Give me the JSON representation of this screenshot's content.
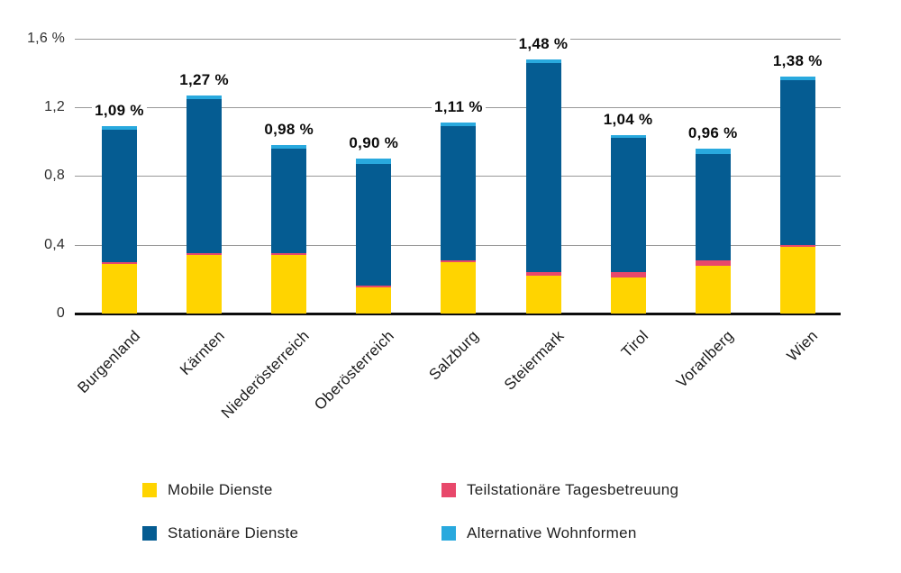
{
  "chart_data": {
    "type": "bar",
    "stacked": true,
    "title": "",
    "unit": "%",
    "categories": [
      "Burgenland",
      "Kärnten",
      "Niederösterreich",
      "Oberösterreich",
      "Salzburg",
      "Steiermark",
      "Tirol",
      "Vorarlberg",
      "Wien"
    ],
    "series": [
      {
        "name": "Mobile Dienste",
        "color": "#ffd400",
        "values": [
          0.29,
          0.34,
          0.34,
          0.15,
          0.3,
          0.22,
          0.21,
          0.28,
          0.39
        ]
      },
      {
        "name": "Teilstationäre Tagesbetreuung",
        "color": "#e8486b",
        "values": [
          0.01,
          0.01,
          0.01,
          0.01,
          0.01,
          0.02,
          0.03,
          0.03,
          0.01
        ]
      },
      {
        "name": "Stationäre Dienste",
        "color": "#055c92",
        "values": [
          0.77,
          0.9,
          0.61,
          0.71,
          0.78,
          1.22,
          0.78,
          0.62,
          0.96
        ]
      },
      {
        "name": "Alternative Wohnformen",
        "color": "#29a9de",
        "values": [
          0.02,
          0.02,
          0.02,
          0.03,
          0.02,
          0.02,
          0.02,
          0.03,
          0.02
        ]
      }
    ],
    "stack_order": "bottom-to-top",
    "totals": [
      1.09,
      1.27,
      0.98,
      0.9,
      1.11,
      1.48,
      1.04,
      0.96,
      1.38
    ],
    "total_labels": [
      "1,09 %",
      "1,27 %",
      "0,98 %",
      "0,90 %",
      "1,11 %",
      "1,48 %",
      "1,04 %",
      "0,96 %",
      "1,38 %"
    ],
    "y_ticks": [
      {
        "value": 0,
        "label": "0"
      },
      {
        "value": 0.4,
        "label": "0,4"
      },
      {
        "value": 0.8,
        "label": "0,8"
      },
      {
        "value": 1.2,
        "label": "1,2"
      },
      {
        "value": 1.6,
        "label": "1,6 %"
      }
    ],
    "ylim": [
      0,
      1.6
    ],
    "grid": true,
    "legend_position": "bottom",
    "legend_items": [
      {
        "label": "Mobile Dienste",
        "color": "#ffd400"
      },
      {
        "label": "Teilstationäre Tagesbetreuung",
        "color": "#e8486b"
      },
      {
        "label": "Stationäre Dienste",
        "color": "#055c92"
      },
      {
        "label": "Alternative Wohnformen",
        "color": "#29a9de"
      }
    ]
  },
  "colors": {
    "mobile_dienste": "#ffd400",
    "teilstationaere_tagesbetreuung": "#e8486b",
    "stationaere_dienste": "#055c92",
    "alternative_wohnformen": "#29a9de",
    "gridline": "#999999",
    "baseline": "#0d0d0d"
  }
}
